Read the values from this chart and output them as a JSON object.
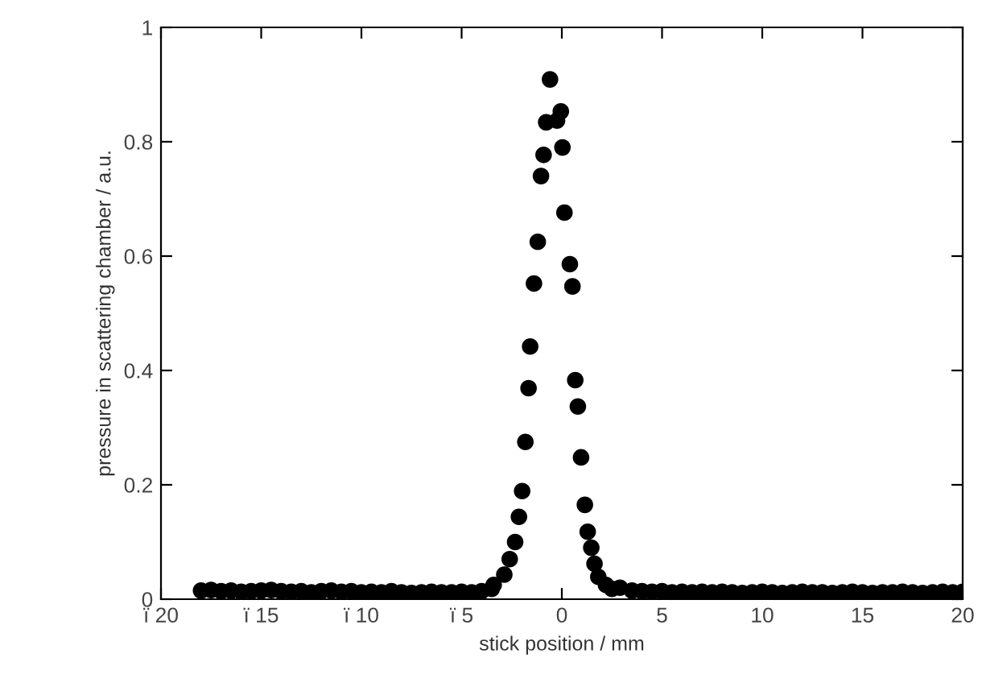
{
  "chart_data": {
    "type": "scatter",
    "xlabel": "stick position / mm",
    "ylabel": "pressure in scattering chamber / a.u.",
    "xlim": [
      -20,
      20
    ],
    "ylim": [
      0,
      1
    ],
    "xticks": [
      {
        "value": -20,
        "label": "ï 20"
      },
      {
        "value": -15,
        "label": "ï 15"
      },
      {
        "value": -10,
        "label": "ï 10"
      },
      {
        "value": -5,
        "label": "ï 5"
      },
      0,
      5,
      10,
      15,
      20
    ],
    "yticks": [
      0,
      0.2,
      0.4,
      0.6,
      0.8,
      1
    ],
    "grid": false,
    "marker": "circle",
    "series": [
      {
        "color": "#000000",
        "x": [
          -18,
          -17.5,
          -17,
          -16.5,
          -16,
          -15.5,
          -15,
          -14.5,
          -14,
          -13.5,
          -13,
          -12.5,
          -12,
          -11.5,
          -11,
          -10.5,
          -10,
          -9.5,
          -9,
          -8.5,
          -8,
          -7.5,
          -7,
          -6.5,
          -6,
          -5.5,
          -5,
          -4.5,
          -4,
          -3.5,
          -3.4,
          -2.87,
          -2.6,
          -2.33,
          -2.14,
          -1.98,
          -1.82,
          -1.66,
          -1.58,
          -1.39,
          -1.2,
          -1.04,
          -0.91,
          -0.78,
          -0.59,
          -0.24,
          -0.05,
          0.03,
          0.13,
          0.4,
          0.53,
          0.67,
          0.8,
          0.96,
          1.15,
          1.29,
          1.47,
          1.63,
          1.82,
          2.2,
          2.5,
          2.9,
          3.5,
          4,
          4.5,
          5,
          5.5,
          6,
          6.5,
          7,
          7.5,
          8,
          8.5,
          9,
          9.5,
          10,
          10.5,
          11,
          11.5,
          12,
          12.5,
          13,
          13.5,
          14,
          14.5,
          15,
          15.5,
          16,
          16.5,
          17,
          17.5,
          18,
          18.5,
          19,
          19.5,
          20
        ],
        "values": [
          0.015,
          0.016,
          0.014,
          0.015,
          0.013,
          0.014,
          0.015,
          0.016,
          0.014,
          0.013,
          0.014,
          0.012,
          0.014,
          0.015,
          0.013,
          0.014,
          0.012,
          0.013,
          0.012,
          0.014,
          0.012,
          0.011,
          0.012,
          0.013,
          0.012,
          0.012,
          0.013,
          0.012,
          0.014,
          0.018,
          0.025,
          0.043,
          0.07,
          0.1,
          0.144,
          0.189,
          0.275,
          0.369,
          0.442,
          0.552,
          0.625,
          0.74,
          0.777,
          0.834,
          0.909,
          0.837,
          0.853,
          0.79,
          0.676,
          0.586,
          0.547,
          0.383,
          0.337,
          0.248,
          0.165,
          0.118,
          0.09,
          0.062,
          0.039,
          0.025,
          0.018,
          0.02,
          0.015,
          0.014,
          0.013,
          0.014,
          0.012,
          0.013,
          0.012,
          0.013,
          0.012,
          0.013,
          0.012,
          0.011,
          0.012,
          0.013,
          0.012,
          0.011,
          0.012,
          0.013,
          0.012,
          0.012,
          0.011,
          0.012,
          0.013,
          0.012,
          0.011,
          0.012,
          0.012,
          0.013,
          0.012,
          0.011,
          0.012,
          0.013,
          0.012,
          0.013
        ]
      }
    ]
  }
}
